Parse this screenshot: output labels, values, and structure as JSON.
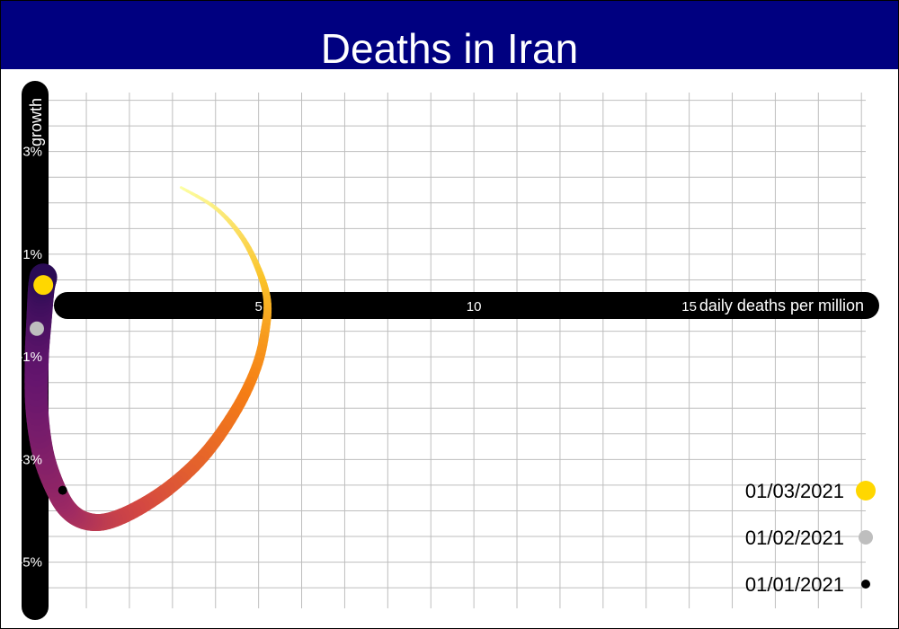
{
  "title": "Deaths in Iran",
  "chart_data": {
    "type": "scatter",
    "title": "Deaths in Iran",
    "xlabel": "daily deaths per million",
    "ylabel": "growth",
    "xlim": [
      -0.4,
      19.1
    ],
    "ylim": [
      -5.9,
      4.15
    ],
    "x_ticks": [
      {
        "value": 5,
        "label": "5"
      },
      {
        "value": 10,
        "label": "10"
      },
      {
        "value": 15,
        "label": "15"
      }
    ],
    "y_ticks": [
      {
        "value": 3,
        "label": "3%"
      },
      {
        "value": 1,
        "label": "1%"
      },
      {
        "value": -1,
        "label": "-1%"
      },
      {
        "value": -3,
        "label": "-3%"
      },
      {
        "value": -5,
        "label": "-5%"
      }
    ],
    "grid": true,
    "colormap": "inferno",
    "trajectory": [
      {
        "x": 3.2,
        "y": 2.3
      },
      {
        "x": 4.0,
        "y": 1.9
      },
      {
        "x": 4.6,
        "y": 1.35
      },
      {
        "x": 5.0,
        "y": 0.7
      },
      {
        "x": 5.2,
        "y": 0.1
      },
      {
        "x": 5.15,
        "y": -0.5
      },
      {
        "x": 4.95,
        "y": -1.2
      },
      {
        "x": 4.5,
        "y": -2.0
      },
      {
        "x": 3.8,
        "y": -2.85
      },
      {
        "x": 3.0,
        "y": -3.5
      },
      {
        "x": 2.2,
        "y": -3.95
      },
      {
        "x": 1.5,
        "y": -4.2
      },
      {
        "x": 1.0,
        "y": -4.2
      },
      {
        "x": 0.6,
        "y": -4.0
      },
      {
        "x": 0.3,
        "y": -3.6
      },
      {
        "x": 0.0,
        "y": -2.9
      },
      {
        "x": -0.15,
        "y": -2.0
      },
      {
        "x": -0.15,
        "y": -1.0
      },
      {
        "x": -0.1,
        "y": -0.3
      },
      {
        "x": -0.05,
        "y": 0.3
      },
      {
        "x": 0.0,
        "y": 0.55
      }
    ],
    "highlights": [
      {
        "label": "01/03/2021",
        "x": 0.0,
        "y": 0.4,
        "color": "#FFD700",
        "size": "large"
      },
      {
        "label": "01/02/2021",
        "x": -0.15,
        "y": -0.45,
        "color": "#BEBEBE",
        "size": "medium"
      },
      {
        "label": "01/01/2021",
        "x": 0.45,
        "y": -3.6,
        "color": "#000000",
        "size": "small"
      }
    ],
    "legend": {
      "position": "bottom-right",
      "items": [
        {
          "label": "01/03/2021",
          "color": "#FFD700",
          "size": "large"
        },
        {
          "label": "01/02/2021",
          "color": "#BEBEBE",
          "size": "medium"
        },
        {
          "label": "01/01/2021",
          "color": "#000000",
          "size": "small"
        }
      ]
    },
    "colors": {
      "title_background": "#000080",
      "axis_bar": "#000000",
      "grid": "#BEBEBE"
    }
  }
}
